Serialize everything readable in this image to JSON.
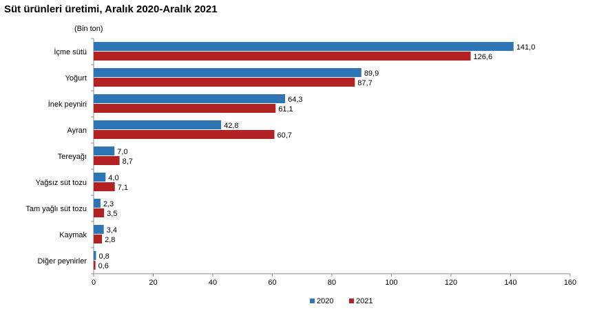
{
  "chart_data": {
    "type": "bar",
    "orientation": "horizontal",
    "title": "Süt ürünleri üretimi, Aralık 2020-Aralık 2021",
    "unit_label": "(Bin ton)",
    "categories": [
      "İçme sütü",
      "Yoğurt",
      "İnek peyniri",
      "Ayran",
      "Tereyağı",
      "Yağsız süt tozu",
      "Tam yağlı süt tozu",
      "Kaymak",
      "Diğer peynirler"
    ],
    "series": [
      {
        "name": "2020",
        "values": [
          141.0,
          89.9,
          64.3,
          42.8,
          7.0,
          4.0,
          2.3,
          3.4,
          0.8
        ],
        "labels": [
          "141,0",
          "89,9",
          "64,3",
          "42,8",
          "7,0",
          "4,0",
          "2,3",
          "3,4",
          "0,8"
        ],
        "color": "#2E75B6"
      },
      {
        "name": "2021",
        "values": [
          126.6,
          87.7,
          61.1,
          60.7,
          8.7,
          7.1,
          3.5,
          2.8,
          0.6
        ],
        "labels": [
          "126,6",
          "87,7",
          "61,1",
          "60,7",
          "8,7",
          "7,1",
          "3,5",
          "2,8",
          "0,6"
        ],
        "color": "#B22222"
      }
    ],
    "xlim": [
      0,
      160
    ],
    "xticks": [
      0,
      20,
      40,
      60,
      80,
      100,
      120,
      140,
      160
    ],
    "grid": false,
    "legend_position": "bottom"
  }
}
